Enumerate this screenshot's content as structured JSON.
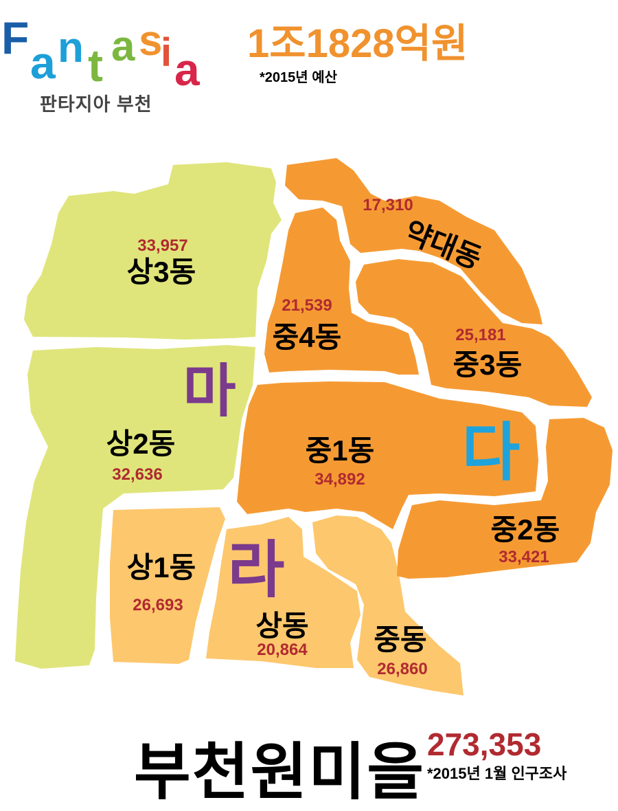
{
  "logo": {
    "letters": [
      {
        "ch": "F",
        "color": "#1a5ea8"
      },
      {
        "ch": "a",
        "color": "#1d9fd8"
      },
      {
        "ch": "n",
        "color": "#1d9fd8"
      },
      {
        "ch": "t",
        "color": "#7cb740"
      },
      {
        "ch": "a",
        "color": "#7cb740"
      },
      {
        "ch": "s",
        "color": "#f0922e"
      },
      {
        "ch": "i",
        "color": "#e2543a"
      },
      {
        "ch": "a",
        "color": "#d8254a"
      }
    ],
    "subtitle": "판타지아 부천"
  },
  "budget": {
    "amount": "1조1828억원",
    "note": "*2015년 예산"
  },
  "colors": {
    "green": "#dfe57a",
    "orange": "#f59a33",
    "light_orange": "#fdc76d",
    "population": "#b02a30",
    "ma": "#7b3a8c",
    "da": "#1ea3dc",
    "ra": "#7b3a8c"
  },
  "districts": [
    {
      "id": "sang3",
      "name": "상3동",
      "population": "33,957",
      "zone": "green"
    },
    {
      "id": "sang2",
      "name": "상2동",
      "population": "32,636",
      "zone": "green"
    },
    {
      "id": "sang1",
      "name": "상1동",
      "population": "26,693",
      "zone": "light_orange"
    },
    {
      "id": "sangdong",
      "name": "상동",
      "population": "20,864",
      "zone": "light_orange"
    },
    {
      "id": "jungdong",
      "name": "중동",
      "population": "26,860",
      "zone": "light_orange"
    },
    {
      "id": "yakdae",
      "name": "약대동",
      "population": "17,310",
      "zone": "orange"
    },
    {
      "id": "jung4",
      "name": "중4동",
      "population": "21,539",
      "zone": "orange"
    },
    {
      "id": "jung3",
      "name": "중3동",
      "population": "25,181",
      "zone": "orange"
    },
    {
      "id": "jung1",
      "name": "중1동",
      "population": "34,892",
      "zone": "orange"
    },
    {
      "id": "jung2",
      "name": "중2동",
      "population": "33,421",
      "zone": "orange"
    }
  ],
  "zones": {
    "ma": "마",
    "da": "다",
    "ra": "라"
  },
  "footer": {
    "title": "부천원미을",
    "total_population": "273,353",
    "note": "*2015년 1월 인구조사"
  }
}
